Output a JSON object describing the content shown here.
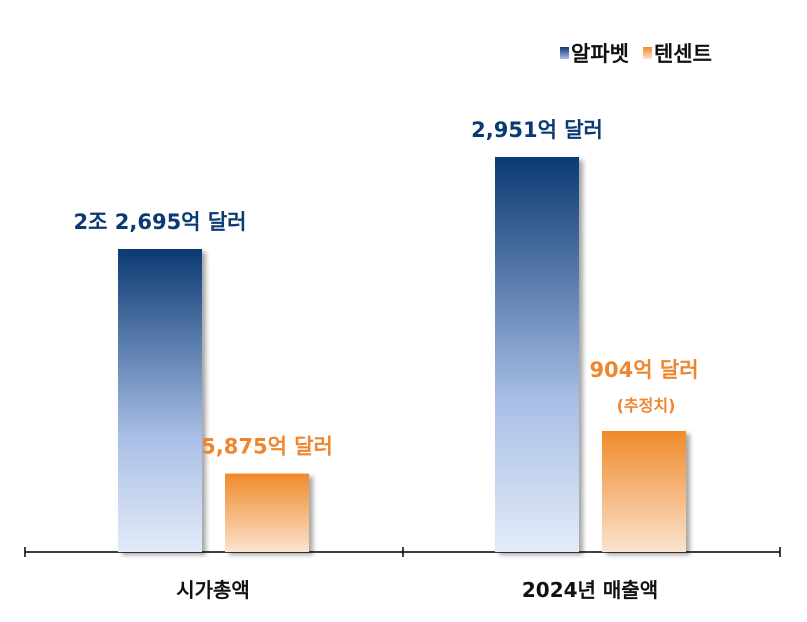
{
  "chart_data": {
    "type": "bar",
    "categories": [
      "시가총액",
      "2024년 매출액"
    ],
    "series": [
      {
        "name": "알파벳",
        "values": [
          22695,
          2951
        ],
        "labels": [
          "2조 2,695억 달러",
          "2,951억 달러"
        ],
        "color_top": "#0b3a73",
        "color_mid": "#a9bfe6",
        "color_bottom": "#e3ebf7"
      },
      {
        "name": "텐센트",
        "values": [
          5875,
          904
        ],
        "labels": [
          "5,875억 달러",
          "904억 달러"
        ],
        "sublabels": [
          "",
          "(추정치)"
        ],
        "color_top": "#f08a2a",
        "color_bottom": "#fbe3cf"
      }
    ],
    "label_colors": {
      "알파벳": "#0b3a73",
      "텐센트": "#ee8630"
    },
    "legend": {
      "position": "top-right"
    },
    "axis_color": "#000000",
    "grid": false,
    "note": "Each category is plotted on its own scale (market cap vs. revenue)."
  }
}
